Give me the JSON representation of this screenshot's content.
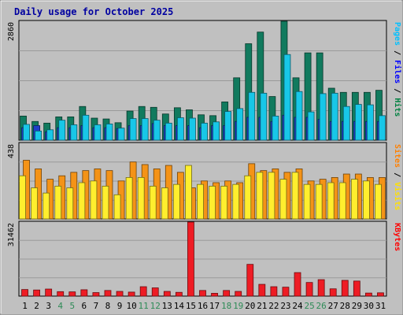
{
  "chart_data": {
    "type": "bar",
    "title": "Daily usage for October 2025",
    "categories": [
      "1",
      "2",
      "3",
      "4",
      "5",
      "6",
      "7",
      "8",
      "9",
      "10",
      "11",
      "12",
      "13",
      "14",
      "15",
      "16",
      "17",
      "18",
      "19",
      "20",
      "21",
      "22",
      "23",
      "24",
      "25",
      "26",
      "27",
      "28",
      "29",
      "30",
      "31"
    ],
    "weekend_days": [
      "4",
      "5",
      "11",
      "12",
      "18",
      "19",
      "25",
      "26"
    ],
    "panels": [
      {
        "id": "hits",
        "ymax": 2860,
        "ytick_label": "2860",
        "side_label_parts": [
          {
            "text": "Pages",
            "color": "#00c0ff"
          },
          {
            "text": " / ",
            "color": "#000000"
          },
          {
            "text": "Files",
            "color": "#0000ff"
          },
          {
            "text": " / ",
            "color": "#000000"
          },
          {
            "text": "Hits",
            "color": "#008040"
          }
        ],
        "series": [
          {
            "name": "Hits",
            "color": "#117a5e",
            "values": [
              580,
              450,
              410,
              560,
              560,
              810,
              530,
              510,
              420,
              700,
              810,
              790,
              630,
              780,
              730,
              610,
              590,
              920,
              1500,
              2320,
              2600,
              1050,
              2860,
              1500,
              2100,
              2100,
              1250,
              1150,
              1150,
              1150,
              1200
            ]
          },
          {
            "name": "Files",
            "color": "#1e3ec8",
            "values": [
              300,
              350,
              200,
              300,
              300,
              350,
              300,
              300,
              280,
              350,
              350,
              400,
              350,
              350,
              350,
              300,
              350,
              350,
              450,
              550,
              550,
              450,
              600,
              550,
              550,
              500,
              450,
              450,
              450,
              450,
              450
            ]
          },
          {
            "name": "Pages",
            "color": "#18c7e8",
            "values": [
              380,
              220,
              250,
              480,
              370,
              600,
              370,
              390,
              290,
              520,
              520,
              480,
              410,
              540,
              530,
              410,
              440,
              690,
              760,
              1150,
              1130,
              580,
              2060,
              1170,
              680,
              1120,
              1130,
              810,
              860,
              850,
              590
            ]
          }
        ]
      },
      {
        "id": "visits",
        "ymax": 438,
        "ytick_label": "438",
        "side_label_parts": [
          {
            "text": "Sites",
            "color": "#ff8000"
          },
          {
            "text": " / ",
            "color": "#000000"
          },
          {
            "text": "Visits",
            "color": "#ffe000"
          }
        ],
        "series": [
          {
            "name": "Visits",
            "color": "#f49317",
            "values": [
              340,
              290,
              230,
              250,
              270,
              280,
              290,
              280,
              220,
              330,
              315,
              290,
              310,
              270,
              180,
              220,
              210,
              220,
              210,
              320,
              280,
              290,
              270,
              290,
              220,
              230,
              240,
              260,
              260,
              240,
              240
            ]
          },
          {
            "name": "Sites",
            "color": "#ffee2e",
            "values": [
              250,
              180,
              150,
              190,
              180,
              210,
              220,
              190,
              140,
              240,
              240,
              190,
              180,
              200,
              310,
              200,
              190,
              190,
              200,
              250,
              270,
              270,
              230,
              270,
              200,
              200,
              210,
              210,
              230,
              220,
              200
            ]
          }
        ]
      },
      {
        "id": "kbytes",
        "ymax": 31462,
        "ytick_label": "31462",
        "side_label_parts": [
          {
            "text": "KBytes",
            "color": "#ff0000"
          }
        ],
        "series": [
          {
            "name": "KBytes",
            "color": "#ee1c24",
            "values": [
              2800,
              2600,
              3000,
              1900,
              1800,
              2700,
              1500,
              2400,
              2000,
              1700,
              4000,
              3500,
              2000,
              1600,
              31462,
              2400,
              1200,
              2400,
              2000,
              13500,
              5000,
              4000,
              3800,
              10000,
              5800,
              7000,
              3100,
              6700,
              6400,
              1300,
              1400
            ]
          }
        ]
      }
    ]
  }
}
